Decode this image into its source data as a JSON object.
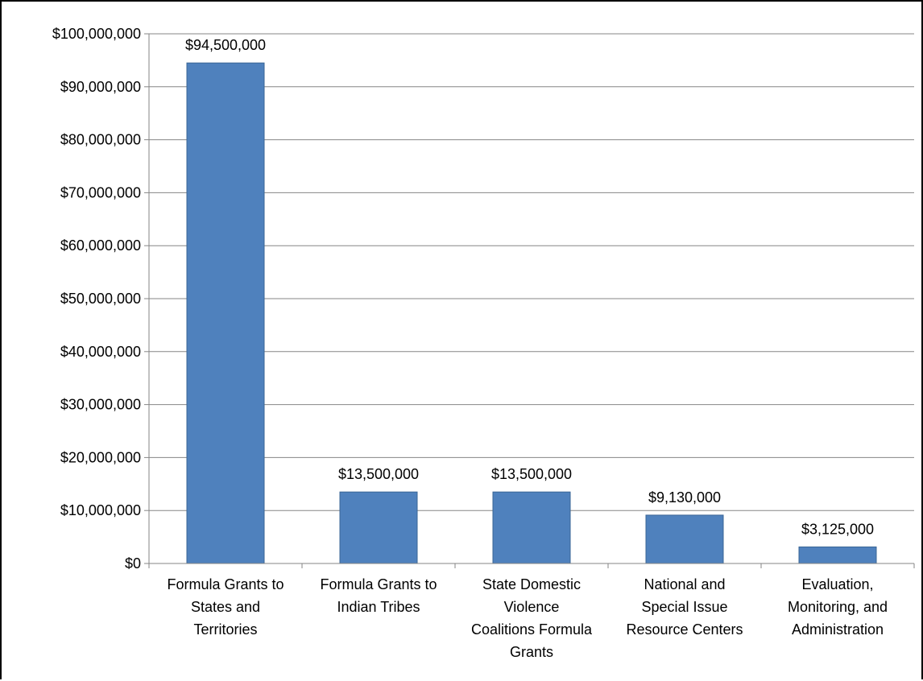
{
  "chart_data": {
    "type": "bar",
    "categories": [
      "Formula Grants to States and Territories",
      "Formula Grants to Indian Tribes",
      "State Domestic Violence Coalitions Formula Grants",
      "National and Special Issue Resource Centers",
      "Evaluation, Monitoring, and Administration"
    ],
    "category_lines": [
      [
        "Formula Grants to",
        "States and",
        "Territories"
      ],
      [
        "Formula Grants to",
        "Indian Tribes"
      ],
      [
        "State Domestic",
        "Violence",
        "Coalitions Formula",
        "Grants"
      ],
      [
        "National and",
        "Special Issue",
        "Resource Centers"
      ],
      [
        "Evaluation,",
        "Monitoring, and",
        "Administration"
      ]
    ],
    "values": [
      94500000,
      13500000,
      13500000,
      9130000,
      3125000
    ],
    "data_labels": [
      "$94,500,000",
      "$13,500,000",
      "$13,500,000",
      "$9,130,000",
      "$3,125,000"
    ],
    "ylim": [
      0,
      100000000
    ],
    "yticks": [
      0,
      10000000,
      20000000,
      30000000,
      40000000,
      50000000,
      60000000,
      70000000,
      80000000,
      90000000,
      100000000
    ],
    "ytick_labels": [
      "$0",
      "$10,000,000",
      "$20,000,000",
      "$30,000,000",
      "$40,000,000",
      "$50,000,000",
      "$60,000,000",
      "$70,000,000",
      "$80,000,000",
      "$90,000,000",
      "$100,000,000"
    ],
    "title": "",
    "xlabel": "",
    "ylabel": "",
    "grid": true,
    "legend": "none",
    "colors": {
      "bar": "#4f81bd",
      "bar_edge": "#3a6595",
      "plot_bg": "#ffffff",
      "grid": "#868686",
      "axis": "#868686"
    }
  }
}
